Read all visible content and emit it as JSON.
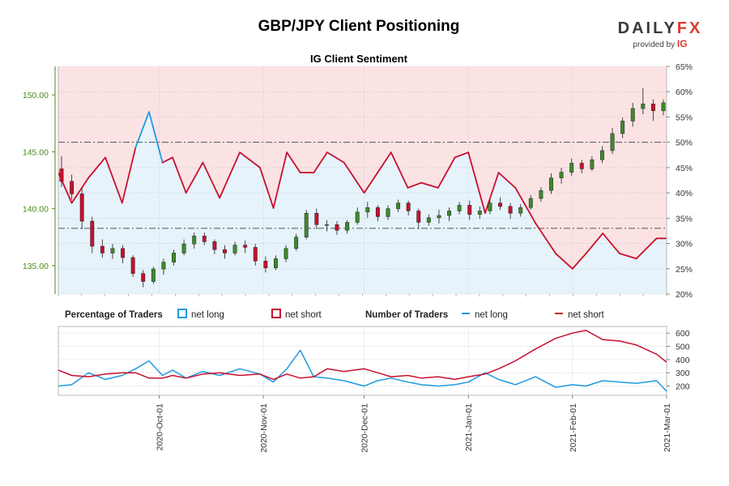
{
  "header": {
    "title": "GBP/JPY Client Positioning",
    "logo_main": "DAILY",
    "logo_accent": "FX",
    "logo_by": "provided by",
    "logo_ig": "IG"
  },
  "colors": {
    "net_long": "#1e9be0",
    "net_short": "#c8102e",
    "long_fill": "#e6f3fb",
    "short_fill": "#fbe3e4",
    "price_axis": "#4a8a1a",
    "candle_up": "#3d8a2a",
    "candle_down": "#c8102e"
  },
  "legend": {
    "pct_title": "Percentage of Traders",
    "pct_long": "net long",
    "pct_short": "net short",
    "num_title": "Number of Traders",
    "num_long": "net long",
    "num_short": "net short"
  },
  "chart_data": [
    {
      "type": "line",
      "title": "IG Client Sentiment",
      "description_series": "percentage of traders net short (price candles overlaid)",
      "x": [
        "2020-09-01",
        "2020-09-05",
        "2020-09-10",
        "2020-09-15",
        "2020-09-20",
        "2020-09-24",
        "2020-09-28",
        "2020-10-02",
        "2020-10-05",
        "2020-10-09",
        "2020-10-14",
        "2020-10-19",
        "2020-10-25",
        "2020-10-31",
        "2020-11-04",
        "2020-11-08",
        "2020-11-12",
        "2020-11-16",
        "2020-11-20",
        "2020-11-25",
        "2020-12-01",
        "2020-12-05",
        "2020-12-09",
        "2020-12-14",
        "2020-12-18",
        "2020-12-23",
        "2020-12-28",
        "2021-01-01",
        "2021-01-06",
        "2021-01-10",
        "2021-01-15",
        "2021-01-21",
        "2021-01-27",
        "2021-02-01",
        "2021-02-05",
        "2021-02-10",
        "2021-02-15",
        "2021-02-20",
        "2021-02-26",
        "2021-03-01"
      ],
      "net_short_pct": [
        44,
        38,
        43,
        47,
        38,
        49,
        56,
        46,
        47,
        40,
        46,
        39,
        48,
        45,
        37,
        48,
        44,
        44,
        48,
        46,
        40,
        44,
        48,
        41,
        42,
        41,
        47,
        48,
        36,
        44,
        41,
        34,
        28,
        25,
        28,
        32,
        28,
        27,
        31,
        31
      ],
      "left_axis": {
        "ylim": [
          132.5,
          152.5
        ],
        "ticks": [
          "135.00",
          "140.00",
          "145.00",
          "150.00"
        ]
      },
      "right_axis": {
        "ylim": [
          20,
          65
        ],
        "ticks": [
          "20%",
          "25%",
          "30%",
          "35%",
          "40%",
          "45%",
          "50%",
          "55%",
          "60%",
          "65%"
        ]
      },
      "ref_lines": [
        {
          "axis": "right",
          "value": 50,
          "style": "dash-dot"
        },
        {
          "axis": "right",
          "value": 33,
          "style": "dash-dot"
        }
      ],
      "price_candles": [
        [
          143.5,
          144.6,
          141.9,
          142.4
        ],
        [
          142.4,
          143.0,
          140.8,
          141.3
        ],
        [
          141.3,
          141.8,
          138.2,
          138.9
        ],
        [
          138.9,
          139.3,
          136.1,
          136.7
        ],
        [
          136.7,
          137.3,
          135.7,
          136.1
        ],
        [
          136.1,
          136.9,
          135.6,
          136.5
        ],
        [
          136.5,
          136.8,
          135.2,
          135.7
        ],
        [
          135.7,
          135.9,
          134.0,
          134.3
        ],
        [
          134.3,
          134.6,
          133.1,
          133.6
        ],
        [
          133.6,
          134.9,
          133.4,
          134.7
        ],
        [
          134.7,
          135.6,
          134.2,
          135.3
        ],
        [
          135.3,
          136.4,
          135.0,
          136.1
        ],
        [
          136.1,
          137.3,
          135.9,
          136.9
        ],
        [
          136.9,
          137.9,
          136.5,
          137.6
        ],
        [
          137.6,
          137.9,
          136.8,
          137.1
        ],
        [
          137.1,
          137.3,
          136.0,
          136.4
        ],
        [
          136.4,
          136.8,
          135.6,
          136.1
        ],
        [
          136.1,
          137.1,
          135.9,
          136.8
        ],
        [
          136.8,
          137.2,
          136.1,
          136.6
        ],
        [
          136.6,
          136.9,
          135.0,
          135.4
        ],
        [
          135.4,
          135.8,
          134.4,
          134.8
        ],
        [
          134.8,
          135.9,
          134.6,
          135.6
        ],
        [
          135.6,
          136.8,
          135.3,
          136.5
        ],
        [
          136.5,
          137.8,
          136.3,
          137.5
        ],
        [
          137.5,
          139.9,
          137.3,
          139.6
        ],
        [
          139.6,
          140.0,
          138.2,
          138.6
        ],
        [
          138.6,
          139.0,
          138.0,
          138.6
        ],
        [
          138.6,
          138.9,
          137.7,
          138.1
        ],
        [
          138.1,
          139.0,
          137.8,
          138.8
        ],
        [
          138.8,
          140.1,
          138.6,
          139.7
        ],
        [
          139.7,
          140.6,
          139.2,
          140.1
        ],
        [
          140.1,
          140.3,
          138.9,
          139.3
        ],
        [
          139.3,
          140.3,
          139.0,
          140.0
        ],
        [
          140.0,
          140.8,
          139.7,
          140.5
        ],
        [
          140.5,
          140.7,
          139.4,
          139.8
        ],
        [
          139.8,
          140.0,
          138.2,
          138.8
        ],
        [
          138.8,
          139.5,
          138.5,
          139.2
        ],
        [
          139.2,
          139.9,
          138.7,
          139.4
        ],
        [
          139.4,
          140.1,
          138.9,
          139.8
        ],
        [
          139.8,
          140.6,
          139.5,
          140.3
        ],
        [
          140.3,
          140.7,
          139.0,
          139.5
        ],
        [
          139.5,
          140.2,
          139.1,
          139.8
        ],
        [
          139.8,
          140.8,
          139.5,
          140.5
        ],
        [
          140.5,
          141.0,
          139.9,
          140.2
        ],
        [
          140.2,
          140.5,
          139.1,
          139.6
        ],
        [
          139.6,
          140.4,
          139.3,
          140.1
        ],
        [
          140.1,
          141.2,
          139.9,
          140.9
        ],
        [
          140.9,
          141.9,
          140.6,
          141.6
        ],
        [
          141.6,
          143.1,
          141.3,
          142.7
        ],
        [
          142.7,
          143.6,
          142.2,
          143.2
        ],
        [
          143.2,
          144.4,
          142.9,
          144.0
        ],
        [
          144.0,
          144.3,
          143.1,
          143.5
        ],
        [
          143.5,
          144.6,
          143.3,
          144.3
        ],
        [
          144.3,
          145.5,
          144.0,
          145.1
        ],
        [
          145.1,
          147.1,
          144.8,
          146.6
        ],
        [
          146.6,
          148.0,
          146.2,
          147.7
        ],
        [
          147.7,
          149.3,
          147.2,
          148.8
        ],
        [
          148.8,
          150.6,
          148.3,
          149.2
        ],
        [
          149.2,
          149.6,
          147.7,
          148.6
        ],
        [
          148.6,
          149.6,
          148.2,
          149.3
        ]
      ]
    },
    {
      "type": "line",
      "title": "",
      "x": [
        "2020-09-01",
        "2020-09-05",
        "2020-09-10",
        "2020-09-15",
        "2020-09-20",
        "2020-09-24",
        "2020-09-28",
        "2020-10-02",
        "2020-10-05",
        "2020-10-09",
        "2020-10-14",
        "2020-10-19",
        "2020-10-25",
        "2020-10-31",
        "2020-11-04",
        "2020-11-08",
        "2020-11-12",
        "2020-11-16",
        "2020-11-20",
        "2020-11-25",
        "2020-12-01",
        "2020-12-05",
        "2020-12-09",
        "2020-12-14",
        "2020-12-18",
        "2020-12-23",
        "2020-12-28",
        "2021-01-01",
        "2021-01-06",
        "2021-01-10",
        "2021-01-15",
        "2021-01-21",
        "2021-01-27",
        "2021-02-01",
        "2021-02-05",
        "2021-02-10",
        "2021-02-15",
        "2021-02-20",
        "2021-02-26",
        "2021-03-01"
      ],
      "series": [
        {
          "name": "net long",
          "values": [
            200,
            210,
            300,
            250,
            280,
            330,
            390,
            280,
            320,
            260,
            310,
            280,
            330,
            290,
            230,
            330,
            470,
            270,
            260,
            240,
            200,
            240,
            260,
            230,
            210,
            200,
            210,
            230,
            300,
            250,
            210,
            270,
            190,
            210,
            200,
            240,
            230,
            220,
            240,
            160
          ]
        },
        {
          "name": "net short",
          "values": [
            320,
            280,
            270,
            290,
            300,
            300,
            260,
            260,
            280,
            260,
            290,
            300,
            280,
            290,
            250,
            290,
            260,
            270,
            330,
            310,
            330,
            300,
            270,
            280,
            260,
            270,
            250,
            270,
            290,
            330,
            390,
            480,
            560,
            600,
            620,
            550,
            540,
            510,
            440,
            380
          ]
        }
      ],
      "right_axis": {
        "ylim": [
          130,
          650
        ],
        "ticks": [
          "200",
          "300",
          "400",
          "500",
          "600"
        ]
      },
      "x_ticks": [
        "2020-Oct-01",
        "2020-Nov-01",
        "2020-Dec-01",
        "2021-Jan-01",
        "2021-Feb-01",
        "2021-Mar-01"
      ]
    }
  ]
}
